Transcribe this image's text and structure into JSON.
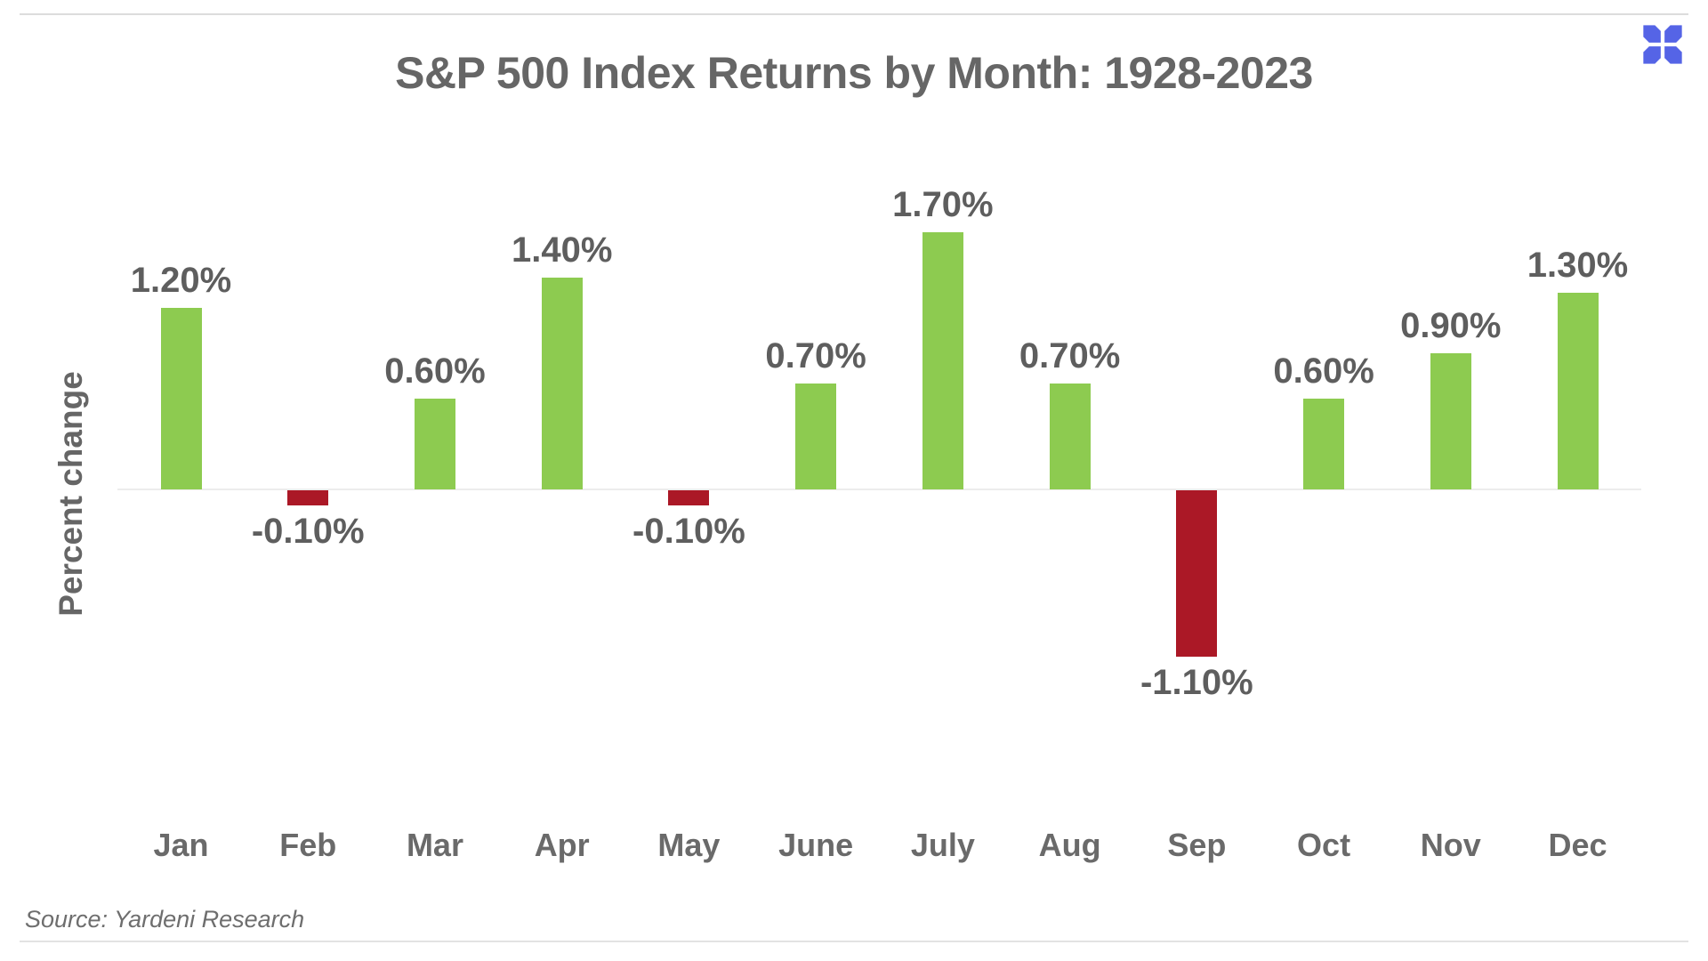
{
  "page": {
    "title": "S&P 500 Index Returns by Month: 1928-2023",
    "source": "Source: Yardeni Research",
    "logo_name": "blue-x-petals-logo",
    "logo_color": "#5564E6"
  },
  "chart_data": {
    "type": "bar",
    "title": "S&P 500 Index Returns by Month: 1928-2023",
    "categories": [
      "Jan",
      "Feb",
      "Mar",
      "Apr",
      "May",
      "June",
      "July",
      "Aug",
      "Sep",
      "Oct",
      "Nov",
      "Dec"
    ],
    "values": [
      1.2,
      -0.1,
      0.6,
      1.4,
      -0.1,
      0.7,
      1.7,
      0.7,
      -1.1,
      0.6,
      0.9,
      1.3
    ],
    "value_labels": [
      "1.20%",
      "-0.10%",
      "0.60%",
      "1.40%",
      "-0.10%",
      "0.70%",
      "1.70%",
      "0.70%",
      "-1.10%",
      "0.60%",
      "0.90%",
      "1.30%"
    ],
    "xlabel": "",
    "ylabel": "Percent change",
    "ylim": [
      -1.3,
      1.9
    ],
    "grid": false,
    "legend": false,
    "positive_color": "#8DCB50",
    "negative_color": "#AB1826",
    "baseline_value": 0
  }
}
